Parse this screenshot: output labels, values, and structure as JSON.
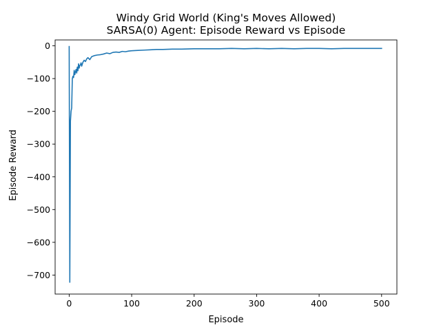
{
  "chart_data": {
    "type": "line",
    "title_lines": [
      "Windy Grid World (King's Moves Allowed)",
      "SARSA(0) Agent: Episode Reward vs Episode"
    ],
    "xlabel": "Episode",
    "ylabel": "Episode Reward",
    "xlim": [
      -22.5,
      524.5
    ],
    "ylim": [
      -758,
      18
    ],
    "x_ticks": [
      0,
      100,
      200,
      300,
      400,
      500
    ],
    "y_ticks": [
      0,
      -100,
      -200,
      -300,
      -400,
      -500,
      -600,
      -700
    ],
    "x_tick_labels": [
      "0",
      "100",
      "200",
      "300",
      "400",
      "500"
    ],
    "y_tick_labels": [
      "0",
      "−100",
      "−200",
      "−300",
      "−400",
      "−500",
      "−600",
      "−700"
    ],
    "grid": false,
    "legend": "none",
    "series": [
      {
        "color": "#1f77b4",
        "x": [
          0,
          1,
          2,
          3,
          4,
          5,
          6,
          7,
          8,
          9,
          10,
          11,
          12,
          13,
          14,
          15,
          16,
          17,
          18,
          19,
          20,
          22,
          24,
          26,
          28,
          30,
          33,
          36,
          40,
          45,
          50,
          55,
          60,
          65,
          70,
          75,
          80,
          85,
          90,
          95,
          100,
          110,
          120,
          130,
          140,
          150,
          165,
          180,
          200,
          220,
          240,
          260,
          280,
          300,
          320,
          340,
          360,
          380,
          400,
          420,
          440,
          460,
          480,
          500
        ],
        "y": [
          -2,
          -722,
          -230,
          -200,
          -190,
          -100,
          -93,
          -97,
          -75,
          -88,
          -80,
          -72,
          -83,
          -65,
          -76,
          -55,
          -68,
          -60,
          -58,
          -52,
          -62,
          -50,
          -44,
          -48,
          -40,
          -36,
          -42,
          -33,
          -30,
          -28,
          -27,
          -25,
          -22,
          -24,
          -20,
          -19,
          -20,
          -17,
          -18,
          -16,
          -15,
          -14,
          -13,
          -12,
          -11,
          -11,
          -10,
          -10,
          -9,
          -9,
          -9,
          -8,
          -9,
          -8,
          -9,
          -8,
          -9,
          -8,
          -8,
          -9,
          -8,
          -8,
          -8,
          -8
        ]
      }
    ]
  }
}
